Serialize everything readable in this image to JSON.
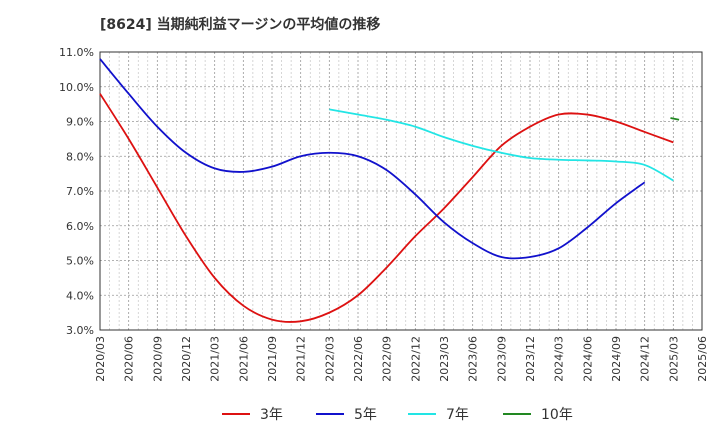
{
  "chart_data": {
    "type": "line",
    "title": "[8624]  当期純利益マージンの平均値の推移",
    "xlabel": "",
    "ylabel": "",
    "ylim": [
      3.0,
      11.0
    ],
    "y_ticks": [
      "3.0%",
      "4.0%",
      "5.0%",
      "6.0%",
      "7.0%",
      "8.0%",
      "9.0%",
      "10.0%",
      "11.0%"
    ],
    "x_ticks": [
      "2020/03",
      "2020/06",
      "2020/09",
      "2020/12",
      "2021/03",
      "2021/06",
      "2021/09",
      "2021/12",
      "2022/03",
      "2022/06",
      "2022/09",
      "2022/12",
      "2023/03",
      "2023/06",
      "2023/09",
      "2023/12",
      "2024/03",
      "2024/06",
      "2024/09",
      "2024/12",
      "2025/03",
      "2025/06"
    ],
    "grid": true,
    "legend_position": "bottom",
    "series": [
      {
        "name": "3年",
        "color": "#dd1111",
        "values": [
          9.8,
          8.5,
          7.1,
          5.7,
          4.5,
          3.7,
          3.3,
          3.25,
          3.5,
          4.0,
          4.8,
          5.7,
          6.5,
          7.4,
          8.3,
          8.85,
          9.2,
          9.2,
          9.0,
          8.7,
          8.4
        ]
      },
      {
        "name": "5年",
        "color": "#1111cc",
        "values": [
          10.8,
          9.8,
          8.85,
          8.1,
          7.65,
          7.55,
          7.7,
          8.0,
          8.1,
          8.0,
          7.6,
          6.9,
          6.1,
          5.5,
          5.1,
          5.1,
          5.35,
          5.95,
          6.65,
          7.25
        ]
      },
      {
        "name": "7年",
        "color": "#22e5e5",
        "values": [
          9.35,
          9.2,
          9.05,
          8.85,
          8.55,
          8.3,
          8.1,
          7.95,
          7.9,
          7.88,
          7.85,
          7.75,
          7.3
        ]
      },
      {
        "name": "10年",
        "color": "#228822",
        "values": [
          9.1,
          9.05
        ]
      }
    ]
  }
}
